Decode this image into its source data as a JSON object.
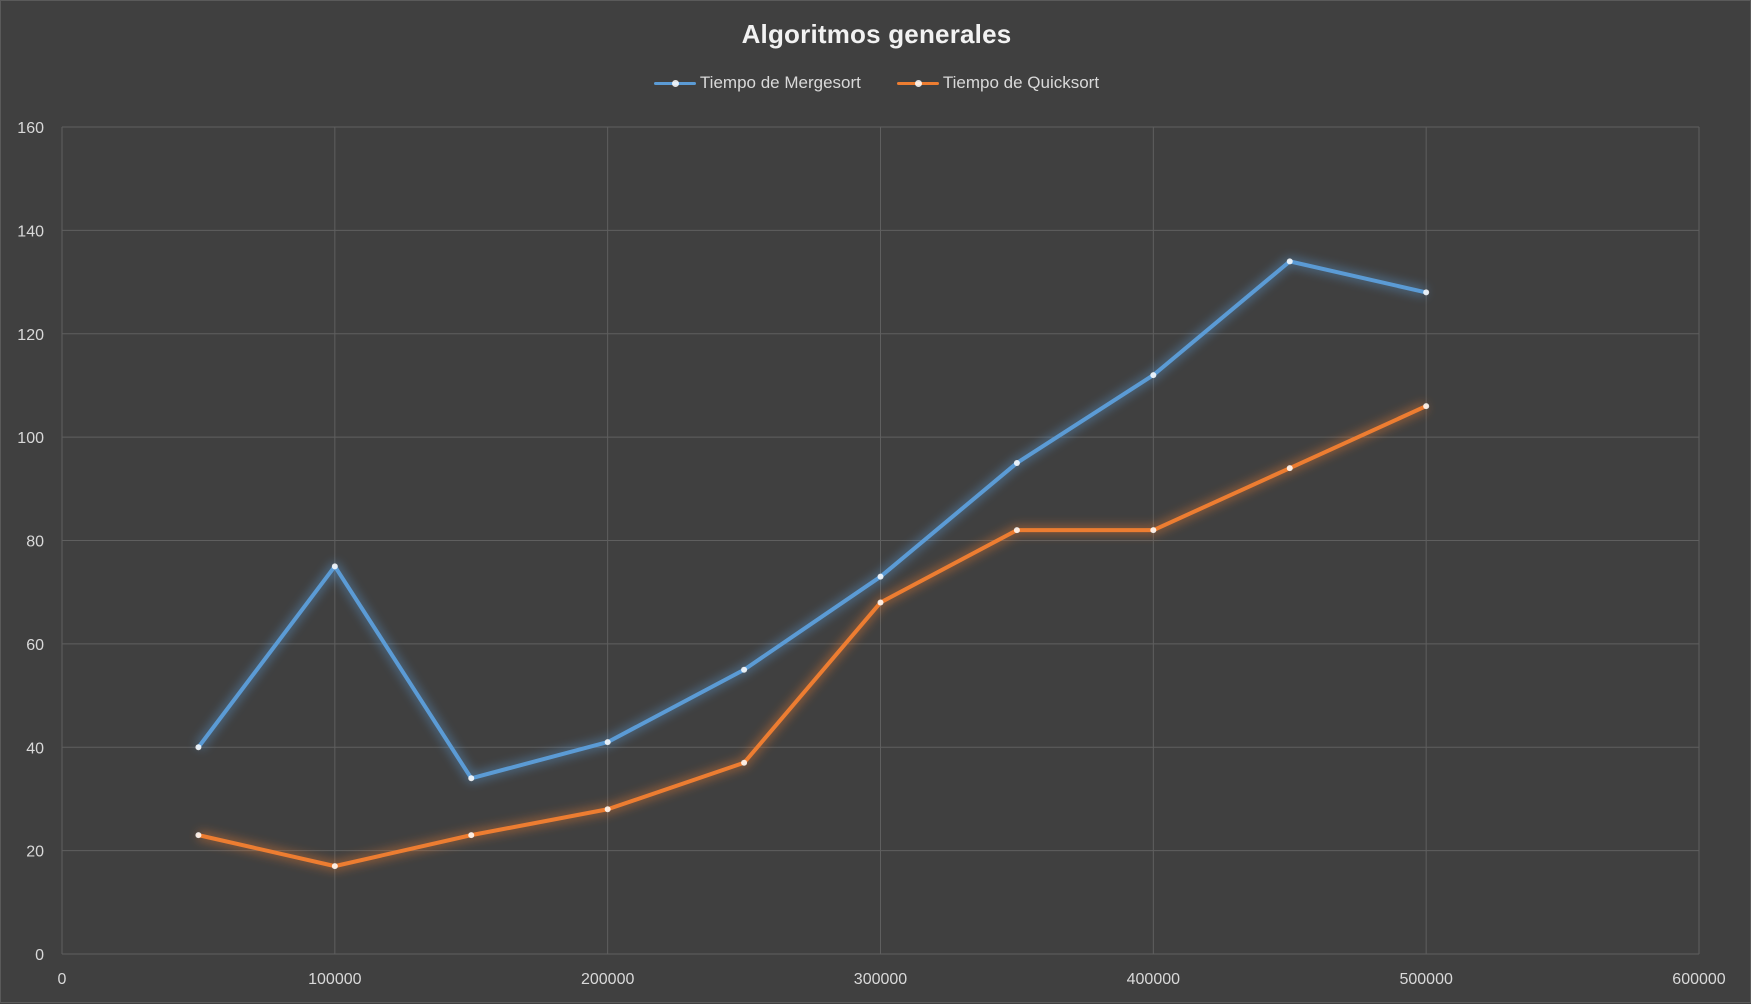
{
  "chart_data": {
    "type": "line",
    "title": "Algoritmos generales",
    "xlabel": "",
    "ylabel": "",
    "xlim": [
      0,
      600000
    ],
    "ylim": [
      0,
      160
    ],
    "x_ticks": [
      0,
      100000,
      200000,
      300000,
      400000,
      500000,
      600000
    ],
    "y_ticks": [
      0,
      20,
      40,
      60,
      80,
      100,
      120,
      140,
      160
    ],
    "x_tick_labels": [
      "0",
      "100000",
      "200000",
      "300000",
      "400000",
      "500000",
      "600000"
    ],
    "y_tick_labels": [
      "0",
      "20",
      "40",
      "60",
      "80",
      "100",
      "120",
      "140",
      "160"
    ],
    "grid": true,
    "legend_position": "top-center",
    "x": [
      50000,
      100000,
      150000,
      200000,
      250000,
      300000,
      350000,
      400000,
      450000,
      500000
    ],
    "series": [
      {
        "name": "Tiempo de Mergesort",
        "color": "#5b9bd5",
        "values": [
          40,
          75,
          34,
          41,
          55,
          73,
          95,
          112,
          134,
          128
        ]
      },
      {
        "name": "Tiempo de Quicksort",
        "color": "#ed7d31",
        "values": [
          23,
          17,
          23,
          28,
          37,
          68,
          82,
          82,
          94,
          106
        ]
      }
    ],
    "colors": {
      "background": "#404040",
      "grid": "#5f5f5f",
      "text": "#d9d9d9",
      "title": "#f2f2f2"
    }
  }
}
